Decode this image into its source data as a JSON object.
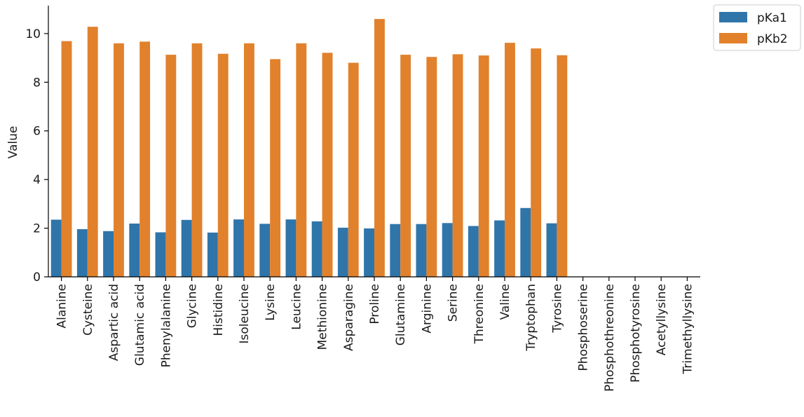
{
  "chart_data": {
    "type": "bar",
    "title": "",
    "xlabel": "",
    "ylabel": "Value",
    "ylim": [
      0,
      11.15
    ],
    "yticks": [
      0,
      2,
      4,
      6,
      8,
      10
    ],
    "grid": false,
    "legend_position": "outside-top-right",
    "categories": [
      "Alanine",
      "Cysteine",
      "Aspartic acid",
      "Glutamic acid",
      "Phenylalanine",
      "Glycine",
      "Histidine",
      "Isoleucine",
      "Lysine",
      "Leucine",
      "Methionine",
      "Asparagine",
      "Proline",
      "Glutamine",
      "Arginine",
      "Serine",
      "Threonine",
      "Valine",
      "Tryptophan",
      "Tyrosine",
      "Phosphoserine",
      "Phosphothreonine",
      "Phosphotyrosine",
      "Acetyllysine",
      "Trimethyllysine"
    ],
    "series": [
      {
        "name": "pKa1",
        "color": "#2f75aa",
        "values": [
          2.35,
          1.96,
          1.88,
          2.19,
          1.83,
          2.34,
          1.82,
          2.36,
          2.18,
          2.36,
          2.28,
          2.02,
          1.99,
          2.17,
          2.17,
          2.21,
          2.09,
          2.32,
          2.83,
          2.2,
          null,
          null,
          null,
          null,
          null
        ]
      },
      {
        "name": "pKb2",
        "color": "#e1812c",
        "values": [
          9.69,
          10.28,
          9.6,
          9.67,
          9.13,
          9.6,
          9.17,
          9.6,
          8.95,
          9.6,
          9.21,
          8.8,
          10.6,
          9.13,
          9.04,
          9.15,
          9.1,
          9.62,
          9.39,
          9.11,
          null,
          null,
          null,
          null,
          null
        ]
      }
    ]
  }
}
